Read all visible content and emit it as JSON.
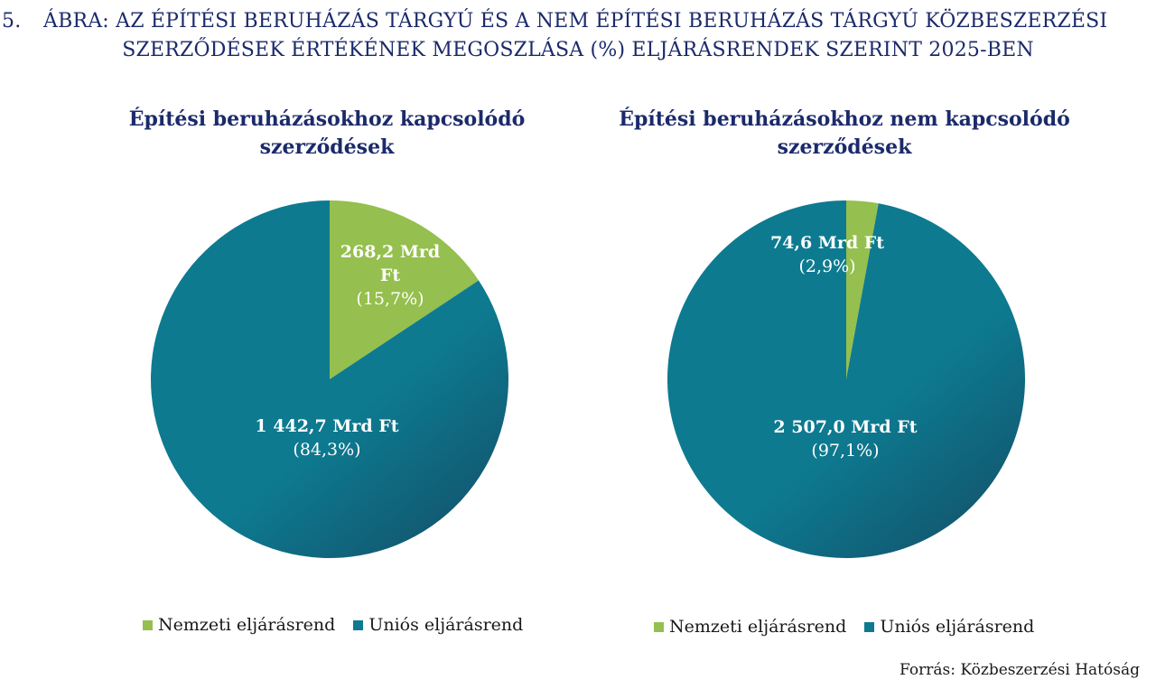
{
  "figure": {
    "number": "5.",
    "title_line1": "ÁBRA: AZ ÉPÍTÉSI BERUHÁZÁS TÁRGYÚ ÉS A NEM ÉPÍTÉSI BERUHÁZÁS TÁRGYÚ KÖZBESZERZÉSI",
    "title_line2": "SZERZŐDÉSEK ÉRTÉKÉNEK MEGOSZLÁSA (%) ELJÁRÁSRENDEK SZERINT 2025-BEN"
  },
  "source": "Forrás: Közbeszerzési Hatóság",
  "colors": {
    "nemzeti": "#95bf4e",
    "unios": "#0d7a90",
    "unios_dark": "#134e67",
    "title": "#1b2a6b"
  },
  "chart_data": [
    {
      "type": "pie",
      "title": "Építési beruházásokhoz kapcsolódó szerződések",
      "legend_position": "bottom",
      "slices": [
        {
          "name": "Nemzeti eljárásrend",
          "value": 268.2,
          "value_label": "268,2 Mrd Ft",
          "percent": 15.7,
          "percent_label": "(15,7%)"
        },
        {
          "name": "Uniós eljárásrend",
          "value": 1442.7,
          "value_label": "1 442,7 Mrd Ft",
          "percent": 84.3,
          "percent_label": "(84,3%)"
        }
      ]
    },
    {
      "type": "pie",
      "title": "Építési beruházásokhoz nem kapcsolódó szerződések",
      "legend_position": "bottom",
      "slices": [
        {
          "name": "Nemzeti eljárásrend",
          "value": 74.6,
          "value_label": "74,6 Mrd Ft",
          "percent": 2.9,
          "percent_label": "(2,9%)"
        },
        {
          "name": "Uniós eljárásrend",
          "value": 2507.0,
          "value_label": "2 507,0 Mrd Ft",
          "percent": 97.1,
          "percent_label": "(97,1%)"
        }
      ]
    }
  ]
}
